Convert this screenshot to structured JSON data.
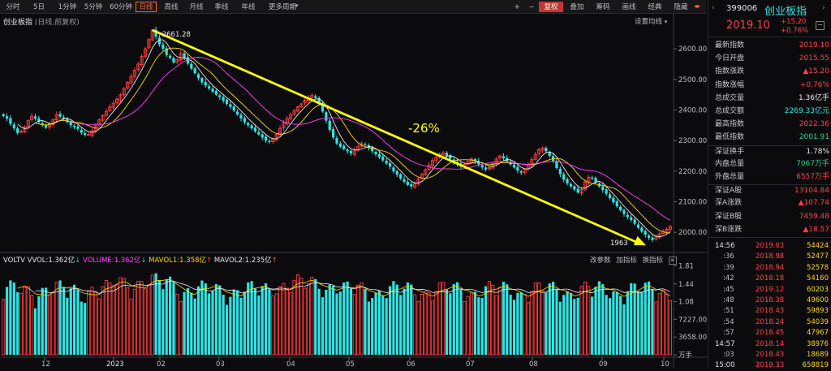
{
  "toolbar": {
    "items": [
      "分时",
      "5日",
      "1分钟",
      "5分钟",
      "60分钟",
      "日线",
      "周线",
      "月线",
      "季线",
      "年线",
      "更多周期"
    ],
    "active": "日线",
    "right_items": [
      "+",
      "−",
      "复权",
      "叠加",
      "筹码",
      "画线",
      "经典",
      "隐藏"
    ],
    "right_active": "复权"
  },
  "chart": {
    "title": "创业板指",
    "subtitle": "(日线,前复权)",
    "settings_label": "设置均线",
    "price_ticks": [
      "2600.00",
      "2500.00",
      "2400.00",
      "2300.00",
      "2200.00",
      "2100.00",
      "2000.00"
    ],
    "high_label": "2661.28",
    "low_label": "1963",
    "annotation": "-26%",
    "x_labels": [
      "12",
      "2023",
      "02",
      "03",
      "04",
      "05",
      "06",
      "07",
      "08",
      "09",
      "10"
    ]
  },
  "volume": {
    "name": "VOLTV",
    "vvol": "VVOL:1.362亿",
    "volume": "VOLUME:1.362亿",
    "mavol1": "MAVOL1:1.358亿",
    "mavol2": "MAVOL2:1.235亿",
    "tools": [
      "改参数",
      "加指标",
      "换指标"
    ],
    "ticks": [
      "1.81",
      "1.44",
      "1.08",
      "7227.00",
      "3658.00",
      "万手"
    ]
  },
  "chart_data": {
    "type": "candlestick",
    "title": "创业板指",
    "series_close": [
      2380,
      2372,
      2355,
      2340,
      2325,
      2330,
      2345,
      2365,
      2380,
      2372,
      2360,
      2350,
      2342,
      2355,
      2368,
      2385,
      2378,
      2370,
      2360,
      2350,
      2345,
      2338,
      2325,
      2318,
      2320,
      2332,
      2350,
      2368,
      2382,
      2395,
      2410,
      2422,
      2435,
      2450,
      2470,
      2490,
      2510,
      2530,
      2550,
      2575,
      2600,
      2630,
      2661,
      2640,
      2615,
      2600,
      2580,
      2570,
      2555,
      2565,
      2585,
      2570,
      2552,
      2535,
      2520,
      2505,
      2490,
      2480,
      2470,
      2460,
      2450,
      2442,
      2430,
      2420,
      2410,
      2398,
      2385,
      2372,
      2360,
      2350,
      2340,
      2330,
      2320,
      2310,
      2300,
      2295,
      2305,
      2320,
      2340,
      2358,
      2372,
      2385,
      2398,
      2410,
      2420,
      2432,
      2440,
      2448,
      2440,
      2420,
      2395,
      2365,
      2335,
      2310,
      2290,
      2280,
      2272,
      2265,
      2258,
      2270,
      2280,
      2290,
      2285,
      2276,
      2265,
      2255,
      2245,
      2235,
      2225,
      2215,
      2200,
      2188,
      2176,
      2165,
      2155,
      2150,
      2160,
      2175,
      2190,
      2205,
      2220,
      2235,
      2245,
      2255,
      2260,
      2250,
      2240,
      2230,
      2222,
      2215,
      2222,
      2232,
      2240,
      2232,
      2222,
      2212,
      2205,
      2212,
      2225,
      2240,
      2250,
      2242,
      2232,
      2222,
      2212,
      2202,
      2195,
      2206,
      2220,
      2238,
      2255,
      2270,
      2275,
      2265,
      2250,
      2232,
      2210,
      2190,
      2172,
      2160,
      2150,
      2140,
      2130,
      2140,
      2165,
      2180,
      2176,
      2162,
      2150,
      2138,
      2126,
      2112,
      2098,
      2085,
      2072,
      2060,
      2050,
      2040,
      2028,
      2015,
      2002,
      1992,
      1982,
      1975,
      1985,
      1995,
      2003,
      2010,
      2019.1
    ],
    "price_range": [
      1950,
      2680
    ],
    "high": 2661.28,
    "low": 1963,
    "trend_change": "-26%"
  },
  "right_panel": {
    "code": "399006",
    "name": "创业板指",
    "price": "2019.10",
    "change": "+15.20",
    "change_pct": "+0.76%",
    "stats": [
      {
        "label": "最新指数",
        "value": "2019.10",
        "color": "red"
      },
      {
        "label": "今日开盘",
        "value": "2015.55",
        "color": "red"
      },
      {
        "label": "指数涨跌",
        "value": "▲15.20",
        "color": "red"
      },
      {
        "label": "指数涨幅",
        "value": "+0.76%",
        "color": "red"
      },
      {
        "label": "总成交量",
        "value": "1.36亿手",
        "color": "white"
      },
      {
        "label": "总成交额",
        "value": "2269.33亿元",
        "color": "cyan"
      },
      {
        "label": "最高指数",
        "value": "2022.36",
        "color": "red"
      },
      {
        "label": "最低指数",
        "value": "2001.91",
        "color": "green"
      },
      {
        "label": "深证换手",
        "value": "1.78%",
        "color": "white"
      },
      {
        "label": "内盘总量",
        "value": "7067万手",
        "color": "green"
      },
      {
        "label": "外盘总量",
        "value": "6557万手",
        "color": "red"
      },
      {
        "label": "深证A股",
        "value": "13104.84",
        "color": "red"
      },
      {
        "label": "深A涨跌",
        "value": "▲107.74",
        "color": "red"
      },
      {
        "label": "深证B股",
        "value": "7459.48",
        "color": "red"
      },
      {
        "label": "深B涨跌",
        "value": "▲18.57",
        "color": "red"
      }
    ],
    "ticks": [
      {
        "time": "14:56",
        "price": "2019.03",
        "vol": "54424",
        "bold": true
      },
      {
        "time": ":36",
        "price": "2018.98",
        "vol": "52477"
      },
      {
        "time": ":39",
        "price": "2018.94",
        "vol": "52578"
      },
      {
        "time": ":42",
        "price": "2018.18",
        "vol": "54160"
      },
      {
        "time": ":45",
        "price": "2019.12",
        "vol": "60203"
      },
      {
        "time": ":48",
        "price": "2018.38",
        "vol": "49600"
      },
      {
        "time": ":51",
        "price": "2018.43",
        "vol": "59893"
      },
      {
        "time": ":54",
        "price": "2018.24",
        "vol": "54039"
      },
      {
        "time": ":57",
        "price": "2018.45",
        "vol": "47967"
      },
      {
        "time": "14:57",
        "price": "2018.14",
        "vol": "38976",
        "bold": true
      },
      {
        "time": ":03",
        "price": "2018.43",
        "vol": "18689"
      },
      {
        "time": "15:00",
        "price": "2019.33",
        "vol": "658819",
        "bold": true
      }
    ]
  }
}
